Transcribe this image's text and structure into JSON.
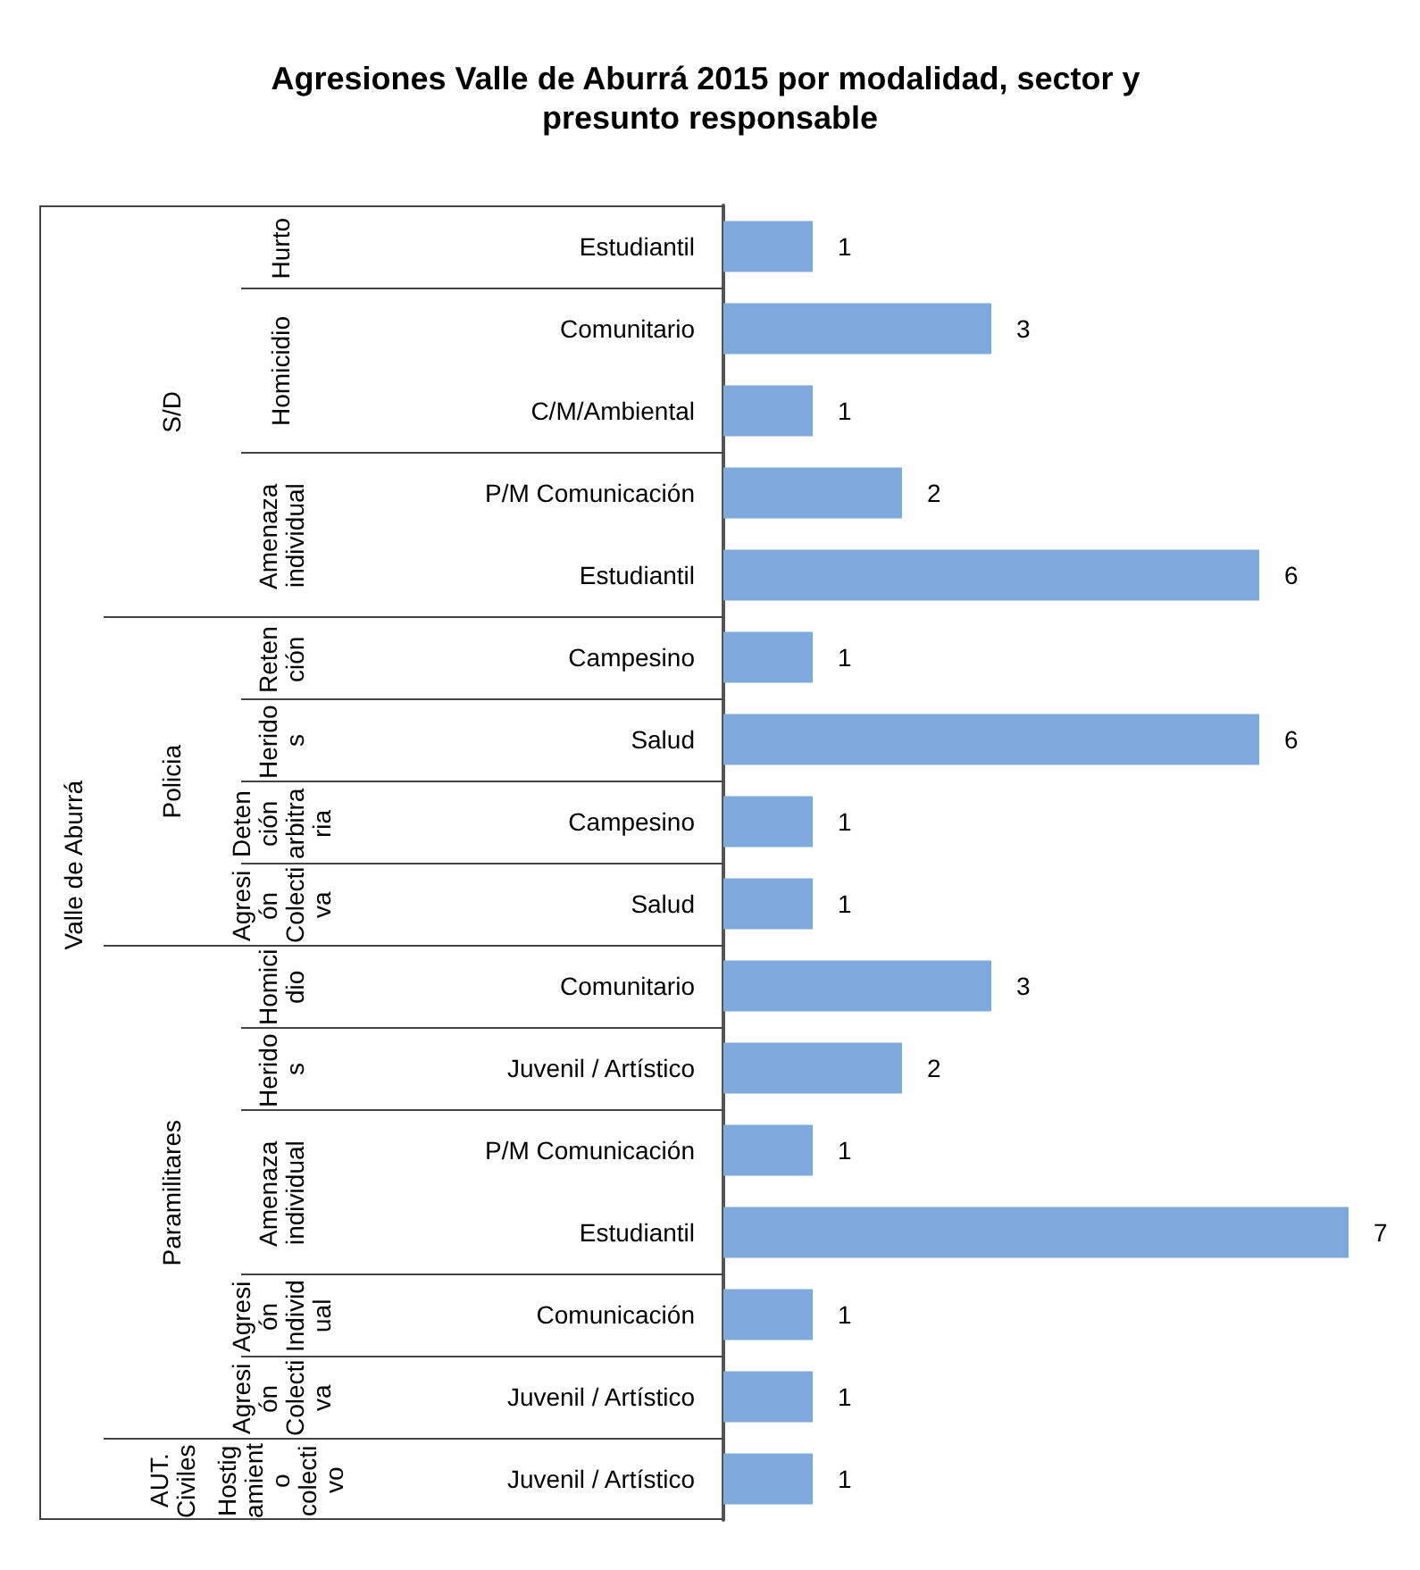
{
  "chart_data": {
    "type": "bar",
    "orientation": "horizontal",
    "title": "Agresiones Valle de Aburrá 2015 por modalidad, sector y presunto responsable",
    "categories": [
      "Estudiantil",
      "Comunitario",
      "C/M/Ambiental",
      "P/M Comunicación",
      "Estudiantil",
      "Campesino",
      "Salud",
      "Campesino",
      "Salud",
      "Comunitario",
      "Juvenil / Artístico",
      "P/M Comunicación",
      "Estudiantil",
      "Comunicación",
      "Juvenil / Artístico",
      "Juvenil / Artístico"
    ],
    "values": [
      1,
      3,
      1,
      2,
      6,
      1,
      6,
      1,
      1,
      3,
      2,
      1,
      7,
      1,
      1,
      1
    ],
    "color": "#7ea9dc",
    "data_labels": true,
    "annotations": [
      "Valle de Aburrá",
      "S/D",
      "Policia",
      "Paramilitares",
      "AUT. Civiles",
      "Hurto",
      "Homicidio",
      "Amenaza individual",
      "Retención",
      "Heridos",
      "Detención arbitraria",
      "Agresión Colectiva",
      "Homicidio",
      "Heridos",
      "Amenaza individual",
      "Agresión Individual",
      "Agresión Colectiva",
      "Hostigamiento colectivo"
    ]
  }
}
